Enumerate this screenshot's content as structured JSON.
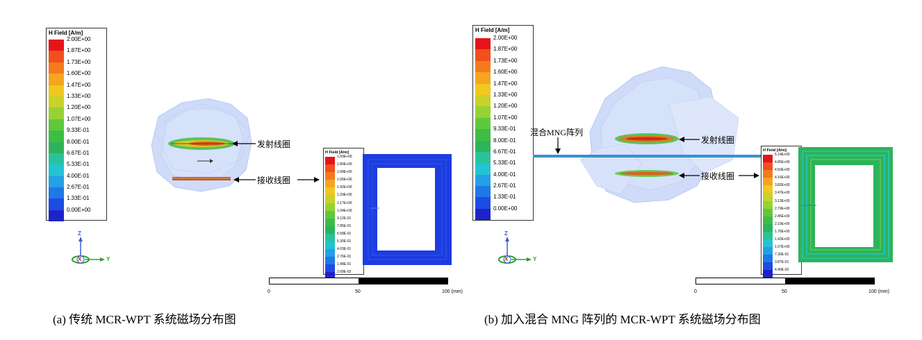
{
  "panel_a": {
    "legend": {
      "title": "H Field [A/m]",
      "ticks": [
        "2.00E+00",
        "1.87E+00",
        "1.73E+00",
        "1.60E+00",
        "1.47E+00",
        "1.33E+00",
        "1.20E+00",
        "1.07E+00",
        "9.33E-01",
        "8.00E-01",
        "6.67E-01",
        "5.33E-01",
        "4.00E-01",
        "2.67E-01",
        "1.33E-01",
        "0.00E+00"
      ]
    },
    "inset_legend": {
      "title": "H Field [A/m]",
      "ticks": [
        "1.93E+00",
        "1.80E+00",
        "1.68E+00",
        "1.55E+00",
        "1.42E+00",
        "1.29E+00",
        "1.17E+00",
        "1.04E+00",
        "9.12E-01",
        "7.85E-01",
        "6.58E-01",
        "5.30E-01",
        "4.03E-01",
        "2.76E-01",
        "1.48E-01",
        "2.09E-02"
      ]
    },
    "label_tx": "发射线圈",
    "label_rx": "接收线圈",
    "scale": {
      "start": "0",
      "mid": "50",
      "end": "100 (mm)"
    },
    "axes": {
      "z": "Z",
      "x": "X",
      "y": "Y"
    },
    "caption": "(a)   传统 MCR-WPT 系统磁场分布图"
  },
  "panel_b": {
    "legend": {
      "title": "H Field [A/m]",
      "ticks": [
        "2.00E+00",
        "1.87E+00",
        "1.73E+00",
        "1.60E+00",
        "1.47E+00",
        "1.33E+00",
        "1.20E+00",
        "1.07E+00",
        "9.33E-01",
        "8.00E-01",
        "6.67E-01",
        "5.33E-01",
        "4.00E-01",
        "2.67E-01",
        "1.33E-01",
        "0.00E+00"
      ]
    },
    "inset_legend": {
      "title": "H Field [A/m]",
      "ticks": [
        "5.19E+00",
        "4.85E+00",
        "4.50E+00",
        "4.16E+00",
        "3.82E+00",
        "3.47E+00",
        "3.13E+00",
        "2.79E+00",
        "2.45E+00",
        "2.10E+00",
        "1.76E+00",
        "1.42E+00",
        "1.07E+00",
        "7.30E-01",
        "3.87E-01",
        "4.40E-02"
      ]
    },
    "label_mng": "混合MNG阵列",
    "label_tx": "发射线圈",
    "label_rx": "接收线圈",
    "scale": {
      "start": "0",
      "mid": "50",
      "end": "100 (mm)"
    },
    "axes": {
      "z": "Z",
      "x": "X",
      "y": "Y"
    },
    "caption": "(b)   加入混合 MNG 阵列的 MCR-WPT 系统磁场分布图"
  },
  "colors": {
    "scale": [
      "#e6141a",
      "#f0501c",
      "#f57a1c",
      "#f5a51e",
      "#f0c81e",
      "#c8d22a",
      "#96d232",
      "#5fc83c",
      "#3cbe46",
      "#2db45a",
      "#28c39b",
      "#23c3d2",
      "#23a0e6",
      "#1e78e6",
      "#1e4be6",
      "#1e23c8"
    ],
    "coil_blue": "#1e3ce0",
    "field_cloud": "#9bb4f0"
  }
}
